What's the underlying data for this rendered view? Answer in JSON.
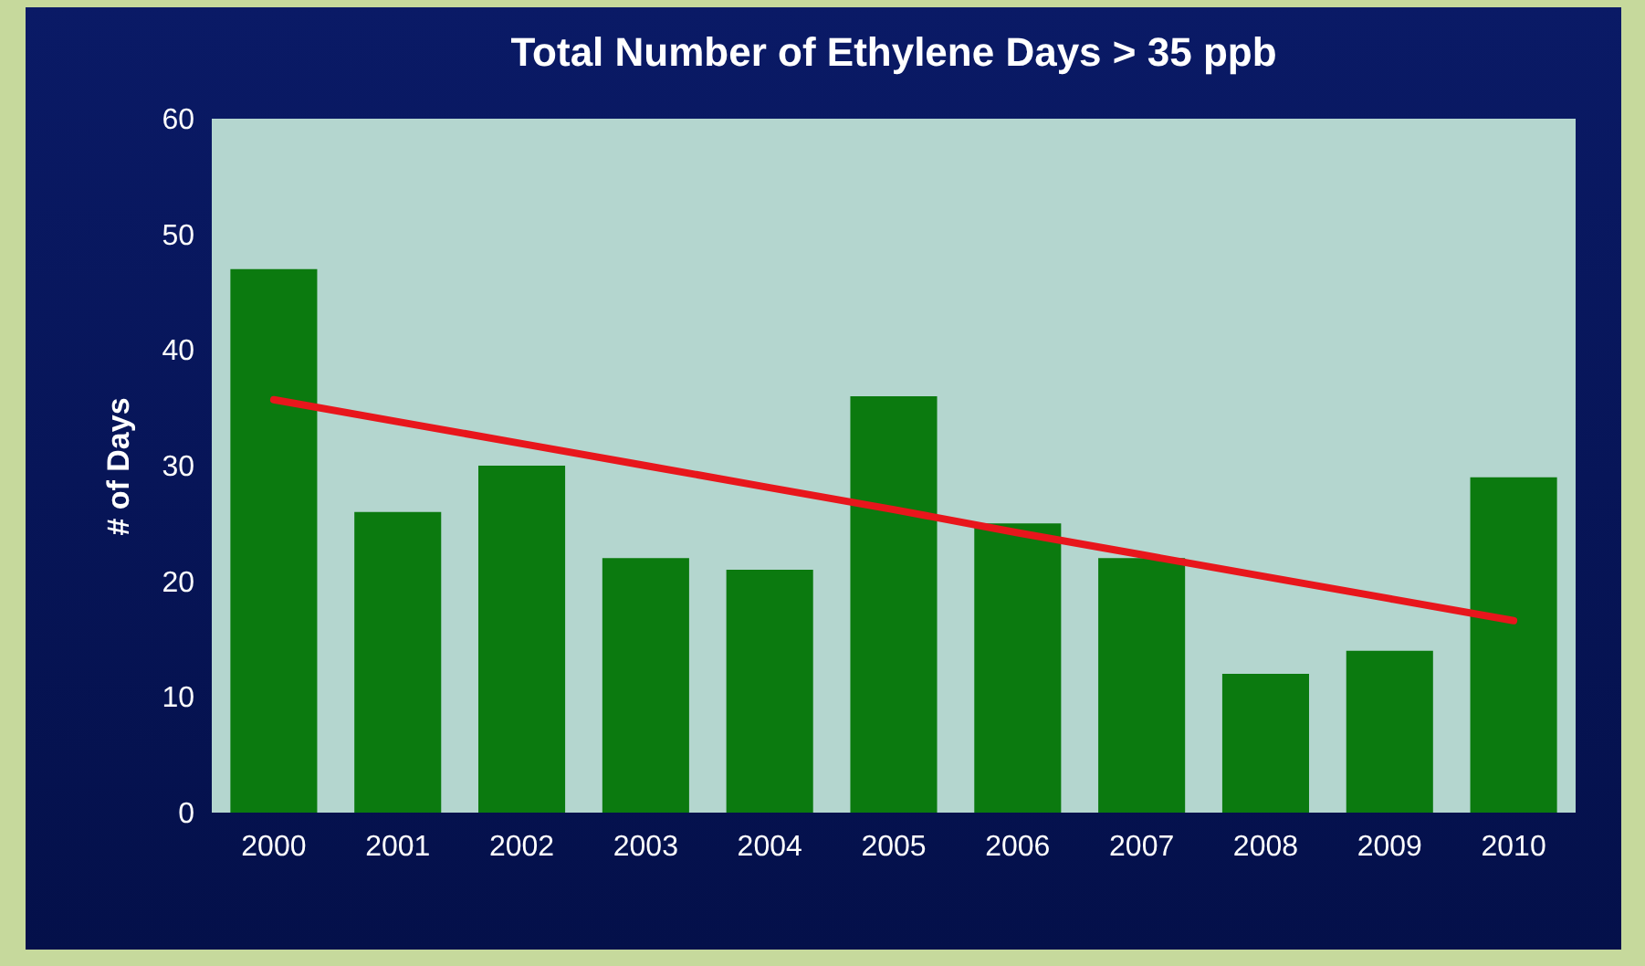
{
  "chart_data": {
    "type": "bar",
    "title": "Total Number of Ethylene Days > 35 ppb",
    "ylabel": "# of Days",
    "categories": [
      "2000",
      "2001",
      "2002",
      "2003",
      "2004",
      "2005",
      "2006",
      "2007",
      "2008",
      "2009",
      "2010"
    ],
    "ylim": [
      0,
      60
    ],
    "yticks": [
      0,
      10,
      20,
      30,
      40,
      50,
      60
    ],
    "grid": false,
    "series": [
      {
        "color": "#0b7a0f",
        "values": [
          47,
          26,
          30,
          22,
          21,
          36,
          25,
          22,
          12,
          14,
          29
        ]
      },
      {
        "type": "line",
        "color": "#e8161c",
        "values": [
          35.7,
          33.8,
          31.9,
          30.0,
          28.1,
          26.2,
          24.2,
          22.3,
          20.4,
          18.5,
          16.6
        ]
      }
    ]
  }
}
